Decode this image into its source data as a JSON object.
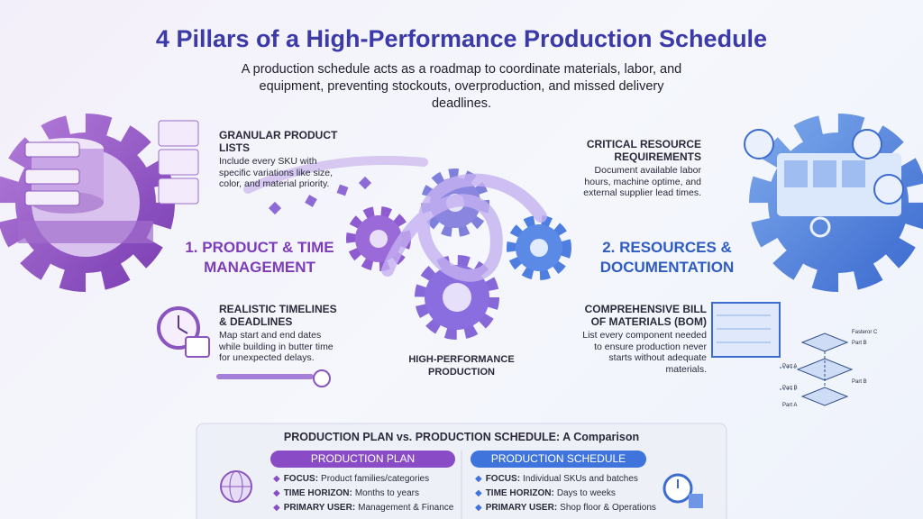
{
  "header": {
    "title": "4 Pillars of a High-Performance Production Schedule",
    "subtitle": "A production schedule acts as a roadmap to coordinate materials, labor, and equipment, preventing stockouts, overproduction, and missed delivery deadlines."
  },
  "left": {
    "heading": "1. PRODUCT & TIME MANAGEMENT",
    "pillars": [
      {
        "title": "GRANULAR PRODUCT LISTS",
        "text": "Include every SKU with specific variations like size, color, and material priority."
      },
      {
        "title": "REALISTIC TIMELINES & DEADLINES",
        "text": "Map start and end dates while building in butter time for unexpected delays."
      }
    ]
  },
  "center": {
    "label": "HIGH-PERFORMANCE PRODUCTION"
  },
  "right": {
    "heading": "2. RESOURCES & DOCUMENTATION",
    "pillars": [
      {
        "title": "CRITICAL RESOURCE REQUIREMENTS",
        "text": "Document available labor hours, machine optime, and external supplier lead times."
      },
      {
        "title": "COMPREHENSIVE BILL OF MATERIALS (BOM)",
        "text": "List every component needed to ensure production never starts without adequate materials."
      }
    ],
    "bom_labels": [
      "Fasteror C",
      "Part B",
      "Part A",
      "Part B",
      "Part B",
      "Part A"
    ]
  },
  "comparison": {
    "title": "PRODUCTION PLAN vs. PRODUCTION SCHEDULE: A Comparison",
    "columns": [
      {
        "header": "PRODUCTION PLAN",
        "rows": [
          {
            "label": "FOCUS:",
            "text": "Product families/categories"
          },
          {
            "label": "TIME HORIZON:",
            "text": "Months to years"
          },
          {
            "label": "PRIMARY USER:",
            "text": "Management & Finance"
          }
        ]
      },
      {
        "header": "PRODUCTION SCHEDULE",
        "rows": [
          {
            "label": "FOCUS:",
            "text": "Individual SKUs and batches"
          },
          {
            "label": "TIME HORIZON:",
            "text": "Days to weeks"
          },
          {
            "label": "PRIMARY USER:",
            "text": "Shop floor & Operations"
          }
        ]
      }
    ]
  }
}
